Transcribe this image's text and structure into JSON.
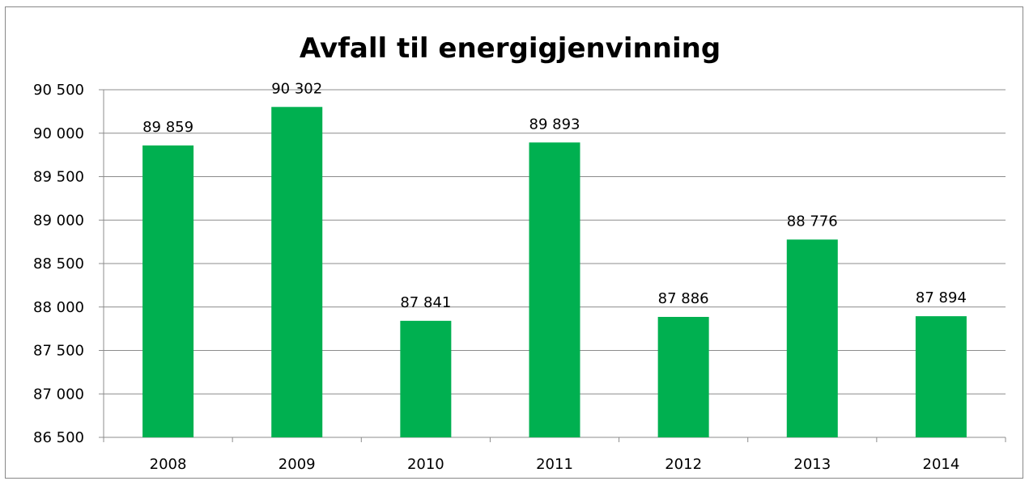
{
  "chart_data": {
    "type": "bar",
    "title": "Avfall til energigjenvinning",
    "xlabel": "",
    "ylabel": "",
    "categories": [
      "2008",
      "2009",
      "2010",
      "2011",
      "2012",
      "2013",
      "2014"
    ],
    "values": [
      89859,
      90302,
      87841,
      89893,
      87886,
      88776,
      87894
    ],
    "value_labels": [
      "89 859",
      "90 302",
      "87 841",
      "89 893",
      "87 886",
      "88 776",
      "87 894"
    ],
    "y_ticks": [
      "86 500",
      "87 000",
      "87 500",
      "88 000",
      "88 500",
      "89 000",
      "89 500",
      "90 000",
      "90 500"
    ],
    "ylim": [
      86500,
      90500
    ],
    "grid": true,
    "legend": "none",
    "bar_color": "#00b050"
  }
}
